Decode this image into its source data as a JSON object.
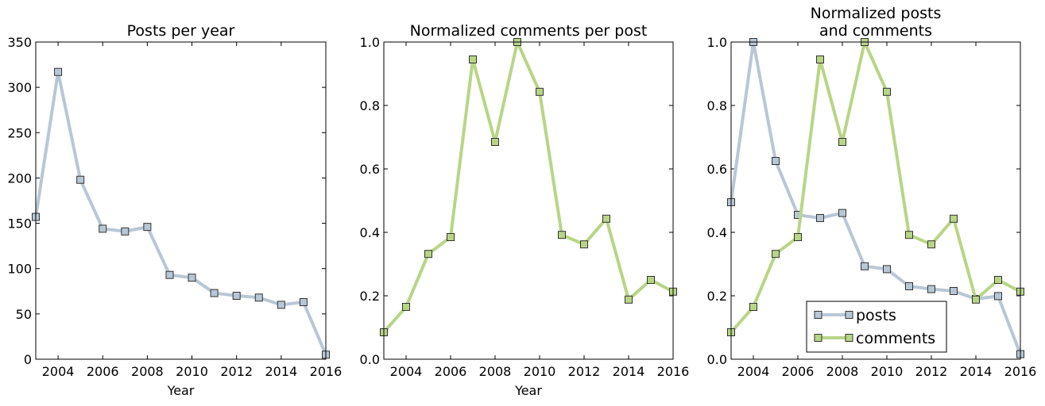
{
  "colors": {
    "posts": "#b8c7d5",
    "comments": "#b8d585",
    "frame": "#000000"
  },
  "chart_data": [
    {
      "type": "line",
      "title": "Posts per year",
      "xlabel": "Year",
      "ylabel": "",
      "xlim": [
        2003,
        2016
      ],
      "ylim": [
        0,
        350
      ],
      "xticks": [
        "2004",
        "2006",
        "2008",
        "2010",
        "2012",
        "2014",
        "2016"
      ],
      "yticks": [
        "0",
        "50",
        "100",
        "150",
        "200",
        "250",
        "300",
        "350"
      ],
      "x": [
        2003,
        2004,
        2005,
        2006,
        2007,
        2008,
        2009,
        2010,
        2011,
        2012,
        2013,
        2014,
        2015,
        2016
      ],
      "series": [
        {
          "color_key": "posts",
          "values": [
            157,
            317,
            198,
            144,
            141,
            146,
            93,
            90,
            73,
            70,
            68,
            60,
            63,
            5
          ]
        }
      ],
      "legend": null
    },
    {
      "type": "line",
      "title": "Normalized comments per post",
      "xlabel": "Year",
      "ylabel": "",
      "xlim": [
        2003,
        2016
      ],
      "ylim": [
        0,
        1
      ],
      "xticks": [
        "2004",
        "2006",
        "2008",
        "2010",
        "2012",
        "2014",
        "2016"
      ],
      "yticks": [
        "0.0",
        "0.2",
        "0.4",
        "0.6",
        "0.8",
        "1.0"
      ],
      "x": [
        2003,
        2004,
        2005,
        2006,
        2007,
        2008,
        2009,
        2010,
        2011,
        2012,
        2013,
        2014,
        2015,
        2016
      ],
      "series": [
        {
          "color_key": "comments",
          "values": [
            0.085,
            0.165,
            0.332,
            0.385,
            0.945,
            0.685,
            1.0,
            0.843,
            0.392,
            0.362,
            0.443,
            0.188,
            0.25,
            0.213
          ]
        }
      ],
      "legend": null
    },
    {
      "type": "line",
      "title": "Normalized posts\nand comments",
      "xlabel": "",
      "ylabel": "",
      "xlim": [
        2003,
        2016
      ],
      "ylim": [
        0,
        1
      ],
      "xticks": [
        "2004",
        "2006",
        "2008",
        "2010",
        "2012",
        "2014",
        "2016"
      ],
      "yticks": [
        "0.0",
        "0.2",
        "0.4",
        "0.6",
        "0.8",
        "1.0"
      ],
      "x": [
        2003,
        2004,
        2005,
        2006,
        2007,
        2008,
        2009,
        2010,
        2011,
        2012,
        2013,
        2014,
        2015,
        2016
      ],
      "series": [
        {
          "name": "posts",
          "color_key": "posts",
          "values": [
            0.495,
            1.0,
            0.625,
            0.455,
            0.445,
            0.461,
            0.293,
            0.284,
            0.23,
            0.221,
            0.215,
            0.19,
            0.199,
            0.016
          ]
        },
        {
          "name": "comments",
          "color_key": "comments",
          "values": [
            0.085,
            0.165,
            0.332,
            0.385,
            0.945,
            0.685,
            1.0,
            0.843,
            0.392,
            0.362,
            0.443,
            0.188,
            0.25,
            0.213
          ]
        }
      ],
      "legend": "lower-right"
    }
  ]
}
